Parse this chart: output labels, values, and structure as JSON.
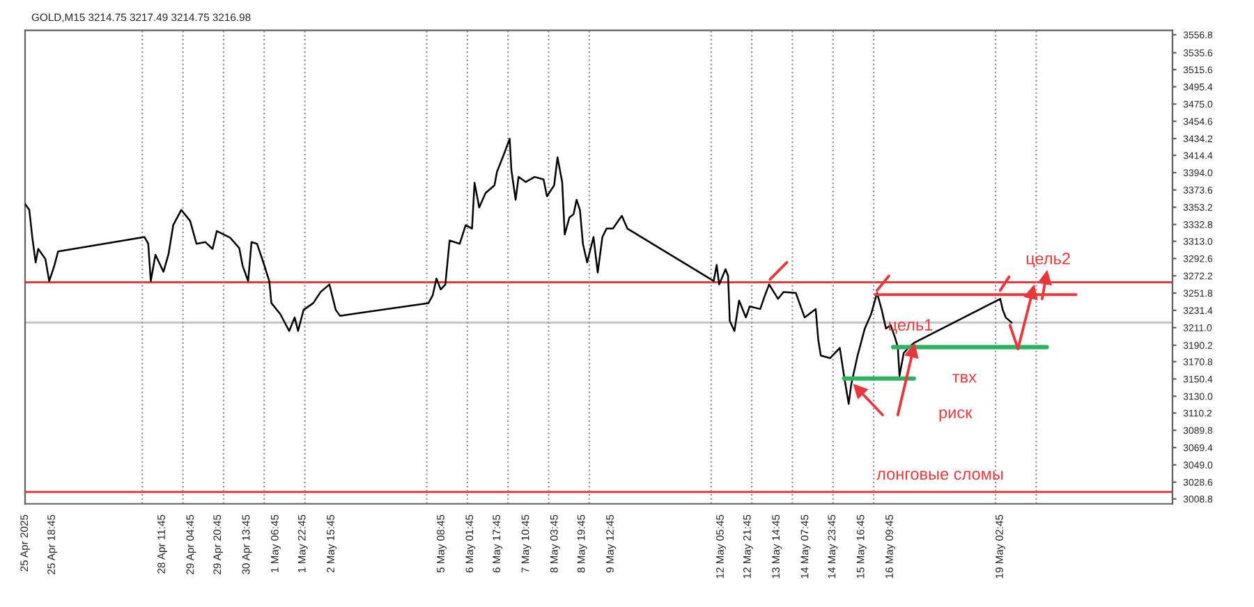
{
  "chart_data": {
    "type": "line",
    "title": "GOLD,M15 3214.75 3217.49 3214.75 3216.98",
    "xlim": [
      "2025-04-25T02:45",
      "2025-05-23T08:30"
    ],
    "ylim": [
      3003,
      3562
    ],
    "xticks": [
      {
        "value": "2025-04-25T02:45",
        "label": "25 Apr 2025"
      },
      {
        "value": "2025-04-25T18:45",
        "label": "25 Apr 18:45"
      },
      {
        "value": "2025-04-28T11:45",
        "label": "28 Apr 11:45"
      },
      {
        "value": "2025-04-29T04:45",
        "label": "29 Apr 04:45"
      },
      {
        "value": "2025-04-29T20:45",
        "label": "29 Apr 20:45"
      },
      {
        "value": "2025-04-30T13:45",
        "label": "30 Apr 13:45"
      },
      {
        "value": "2025-05-01T06:45",
        "label": "1 May 06:45"
      },
      {
        "value": "2025-05-01T22:45",
        "label": "1 May 22:45"
      },
      {
        "value": "2025-05-02T15:45",
        "label": "2 May 15:45"
      },
      {
        "value": "2025-05-05T08:45",
        "label": "5 May 08:45"
      },
      {
        "value": "2025-05-06T01:45",
        "label": "6 May 01:45"
      },
      {
        "value": "2025-05-06T17:45",
        "label": "6 May 17:45"
      },
      {
        "value": "2025-05-07T10:45",
        "label": "7 May 10:45"
      },
      {
        "value": "2025-05-08T03:45",
        "label": "8 May 03:45"
      },
      {
        "value": "2025-05-08T19:45",
        "label": "8 May 19:45"
      },
      {
        "value": "2025-05-09T12:45",
        "label": "9 May 12:45"
      },
      {
        "value": "2025-05-12T05:45",
        "label": "12 May 05:45"
      },
      {
        "value": "2025-05-12T21:45",
        "label": "12 May 21:45"
      },
      {
        "value": "2025-05-13T14:45",
        "label": "13 May 14:45"
      },
      {
        "value": "2025-05-14T07:45",
        "label": "14 May 07:45"
      },
      {
        "value": "2025-05-14T23:45",
        "label": "14 May 23:45"
      },
      {
        "value": "2025-05-15T16:45",
        "label": "15 May 16:45"
      },
      {
        "value": "2025-05-16T09:45",
        "label": "16 May 09:45"
      },
      {
        "value": "2025-05-19T02:45",
        "label": "19 May 02:45"
      }
    ],
    "yticks": [
      3556.8,
      3535.6,
      3515.6,
      3495.4,
      {
        "value": 3475,
        "label": "3475.0"
      },
      3454.6,
      3434.2,
      3414.4,
      {
        "value": 3394,
        "label": "3394.0"
      },
      3373.6,
      3353.2,
      3332.8,
      {
        "value": 3313,
        "label": "3313.0"
      },
      3292.6,
      3272.2,
      3251.8,
      3231.4,
      {
        "value": 3211,
        "label": "3211.0"
      },
      3190.2,
      3170.8,
      3150.4,
      {
        "value": 3130,
        "label": "3130.0"
      },
      3110.2,
      3089.8,
      3069.4,
      {
        "value": 3049,
        "label": "3049.0"
      },
      3028.6,
      3008.8
    ],
    "grid": false,
    "series": [
      {
        "color": "#000000",
        "x": [
          "2025-04-25T02:45",
          "2025-04-25T05:15",
          "2025-04-25T07:00",
          "2025-04-25T09:00",
          "2025-04-25T10:30",
          "2025-04-25T14:45",
          "2025-04-25T17:00",
          "2025-04-25T20:00",
          "2025-04-25T22:15",
          "2025-04-28T01:15",
          "2025-04-28T03:30",
          "2025-04-28T05:00",
          "2025-04-28T07:45",
          "2025-04-28T12:30",
          "2025-04-28T15:30",
          "2025-04-28T18:15",
          "2025-04-28T23:00",
          "2025-04-29T04:15",
          "2025-04-29T08:00",
          "2025-04-29T13:15",
          "2025-04-29T17:30",
          "2025-04-29T20:00",
          "2025-04-30T04:00",
          "2025-04-30T09:15",
          "2025-04-30T11:15",
          "2025-04-30T14:30",
          "2025-04-30T16:30",
          "2025-04-30T19:45",
          "2025-04-30T23:30",
          "2025-05-01T03:00",
          "2025-05-01T04:15",
          "2025-05-01T09:30",
          "2025-05-01T14:45",
          "2025-05-01T18:00",
          "2025-05-01T20:00",
          "2025-05-01T23:15",
          "2025-05-02T05:00",
          "2025-05-02T09:15",
          "2025-05-02T14:30",
          "2025-05-02T18:15",
          "2025-05-02T20:45",
          "2025-05-05T01:00",
          "2025-05-05T03:30",
          "2025-05-05T05:45",
          "2025-05-05T08:15",
          "2025-05-05T11:00",
          "2025-05-05T13:30",
          "2025-05-05T19:30",
          "2025-05-05T23:00",
          "2025-05-06T02:45",
          "2025-05-06T04:15",
          "2025-05-06T07:00",
          "2025-05-06T10:45",
          "2025-05-06T16:00",
          "2025-05-06T17:30",
          "2025-05-06T21:15",
          "2025-05-07T01:00",
          "2025-05-07T02:00",
          "2025-05-07T04:30",
          "2025-05-07T06:15",
          "2025-05-07T10:30",
          "2025-05-07T15:45",
          "2025-05-07T21:00",
          "2025-05-07T23:00",
          "2025-05-08T03:15",
          "2025-05-08T05:15",
          "2025-05-08T08:00",
          "2025-05-08T09:30",
          "2025-05-08T12:15",
          "2025-05-08T14:45",
          "2025-05-08T16:30",
          "2025-05-08T18:30",
          "2025-05-08T20:15",
          "2025-05-08T22:45",
          "2025-05-09T02:30",
          "2025-05-09T05:00",
          "2025-05-09T07:45",
          "2025-05-09T10:15",
          "2025-05-09T14:00",
          "2025-05-09T19:15",
          "2025-05-09T22:30",
          "2025-05-12T01:30",
          "2025-05-12T03:15",
          "2025-05-12T04:45",
          "2025-05-12T08:30",
          "2025-05-12T10:00",
          "2025-05-12T11:00",
          "2025-05-12T13:45",
          "2025-05-12T16:30",
          "2025-05-12T20:30",
          "2025-05-12T22:45",
          "2025-05-13T05:00",
          "2025-05-13T07:45",
          "2025-05-13T10:15",
          "2025-05-13T15:30",
          "2025-05-13T18:45",
          "2025-05-14T02:00",
          "2025-05-14T07:15",
          "2025-05-14T13:45",
          "2025-05-14T15:15",
          "2025-05-14T16:45",
          "2025-05-14T22:15",
          "2025-05-15T04:00",
          "2025-05-15T06:30",
          "2025-05-15T09:15",
          "2025-05-15T10:45",
          "2025-05-15T14:30",
          "2025-05-15T18:45",
          "2025-05-15T22:30",
          "2025-05-16T02:00",
          "2025-05-16T04:45",
          "2025-05-16T07:15",
          "2025-05-16T10:00",
          "2025-05-16T12:30",
          "2025-05-16T14:15",
          "2025-05-16T15:15",
          "2025-05-16T17:45",
          "2025-05-16T21:00",
          "2025-05-16T23:45",
          "2025-05-19T02:45",
          "2025-05-19T04:15",
          "2025-05-19T06:00",
          "2025-05-19T09:30"
        ],
        "values": [
          3357,
          3350,
          3318,
          3288,
          3304,
          3292,
          3266,
          3284,
          3301,
          3318,
          3310,
          3266,
          3297,
          3277,
          3298,
          3332,
          3350,
          3337,
          3310,
          3312,
          3304,
          3325,
          3317,
          3305,
          3284,
          3266,
          3312,
          3310,
          3288,
          3266,
          3240,
          3227,
          3207,
          3223,
          3207,
          3232,
          3240,
          3253,
          3262,
          3232,
          3225,
          3240,
          3249,
          3269,
          3256,
          3262,
          3314,
          3310,
          3332,
          3328,
          3382,
          3353,
          3370,
          3379,
          3395,
          3414,
          3434,
          3397,
          3362,
          3389,
          3383,
          3389,
          3386,
          3366,
          3379,
          3412,
          3383,
          3321,
          3341,
          3345,
          3362,
          3350,
          3310,
          3288,
          3318,
          3276,
          3318,
          3328,
          3328,
          3343,
          3328,
          3266,
          3285,
          3262,
          3280,
          3272,
          3219,
          3207,
          3243,
          3223,
          3236,
          3233,
          3249,
          3262,
          3245,
          3253,
          3252,
          3223,
          3233,
          3197,
          3178,
          3175,
          3187,
          3154,
          3121,
          3144,
          3178,
          3210,
          3227,
          3252,
          3232,
          3210,
          3214,
          3200,
          3188,
          3154,
          3181,
          3188,
          3193,
          3245,
          3232,
          3223,
          3217
        ]
      },
      {
        "color": "#e8383d",
        "x": [
          "2025-05-16T01:00",
          "2025-05-20T23:30"
        ],
        "values": [
          3250,
          3250
        ]
      },
      {
        "color": "#2db35d",
        "x": [
          "2025-05-16T11:30",
          "2025-05-20T06:15"
        ],
        "values": [
          3188,
          3188
        ]
      },
      {
        "color": "#2db35d",
        "x": [
          "2025-05-15T06:30",
          "2025-05-16T23:45"
        ],
        "values": [
          3151,
          3151
        ]
      },
      {
        "color": "#e8383d",
        "x": [
          "2025-05-13T10:45",
          "2025-05-13T20:45"
        ],
        "values": [
          3268,
          3288
        ]
      },
      {
        "color": "#e8383d",
        "x": [
          "2025-05-16T02:00",
          "2025-05-16T09:00"
        ],
        "values": [
          3255,
          3272
        ]
      },
      {
        "color": "#e8383d",
        "x": [
          "2025-05-19T02:45",
          "2025-05-19T08:00"
        ],
        "values": [
          3255,
          3271
        ]
      },
      {
        "color": "#e8383d",
        "marker": "triangle",
        "x": [
          "2025-05-16T05:15",
          "2025-05-15T15:00"
        ],
        "values": [
          3108,
          3138
        ]
      },
      {
        "color": "#e8383d",
        "marker": "triangle",
        "x": [
          "2025-05-16T14:15",
          "2025-05-16T23:15"
        ],
        "values": [
          3108,
          3184
        ]
      },
      {
        "color": "#e8383d",
        "x": [
          "2025-05-19T08:30",
          "2025-05-19T13:15"
        ],
        "values": [
          3214,
          3186
        ]
      },
      {
        "color": "#e8383d",
        "marker": "triangle",
        "x": [
          "2025-05-19T13:15",
          "2025-05-19T21:45"
        ],
        "values": [
          3186,
          3253
        ]
      },
      {
        "color": "#e8383d",
        "marker": "triangle",
        "x": [
          "2025-05-20T03:30",
          "2025-05-20T05:45"
        ],
        "values": [
          3245,
          3270
        ]
      }
    ],
    "ref_lines": [
      {
        "axis": "y",
        "value": 3264.5,
        "color": "#e8383d"
      },
      {
        "axis": "y",
        "value": 3017,
        "color": "#e8383d"
      },
      {
        "axis": "y",
        "value": 3216.98,
        "color": "#c8c8c8"
      },
      {
        "axis": "x",
        "value": "2025-04-28",
        "color": "#909090",
        "line_style": "dotted"
      },
      {
        "axis": "x",
        "value": "2025-04-29",
        "color": "#909090",
        "line_style": "dotted"
      },
      {
        "axis": "x",
        "value": "2025-04-30",
        "color": "#909090",
        "line_style": "dotted"
      },
      {
        "axis": "x",
        "value": "2025-05-01",
        "color": "#909090",
        "line_style": "dotted"
      },
      {
        "axis": "x",
        "value": "2025-05-02",
        "color": "#909090",
        "line_style": "dotted"
      },
      {
        "axis": "x",
        "value": "2025-05-05",
        "color": "#909090",
        "line_style": "dotted"
      },
      {
        "axis": "x",
        "value": "2025-05-06",
        "color": "#909090",
        "line_style": "dotted"
      },
      {
        "axis": "x",
        "value": "2025-05-07",
        "color": "#909090",
        "line_style": "dotted"
      },
      {
        "axis": "x",
        "value": "2025-05-08",
        "color": "#909090",
        "line_style": "dotted"
      },
      {
        "axis": "x",
        "value": "2025-05-09",
        "color": "#909090",
        "line_style": "dotted"
      },
      {
        "axis": "x",
        "value": "2025-05-12",
        "color": "#909090",
        "line_style": "dotted"
      },
      {
        "axis": "x",
        "value": "2025-05-13",
        "color": "#909090",
        "line_style": "dotted"
      },
      {
        "axis": "x",
        "value": "2025-05-14",
        "color": "#909090",
        "line_style": "dotted"
      },
      {
        "axis": "x",
        "value": "2025-05-15",
        "color": "#909090",
        "line_style": "dotted"
      },
      {
        "axis": "x",
        "value": "2025-05-16",
        "color": "#909090",
        "line_style": "dotted"
      },
      {
        "axis": "x",
        "value": "2025-05-19",
        "color": "#909090",
        "line_style": "dotted"
      },
      {
        "axis": "x",
        "value": "2025-05-20",
        "color": "#909090",
        "line_style": "dotted"
      }
    ],
    "annotations": [
      "цель2",
      "цель1",
      "твх",
      "риск",
      "лонговые сломы"
    ]
  }
}
